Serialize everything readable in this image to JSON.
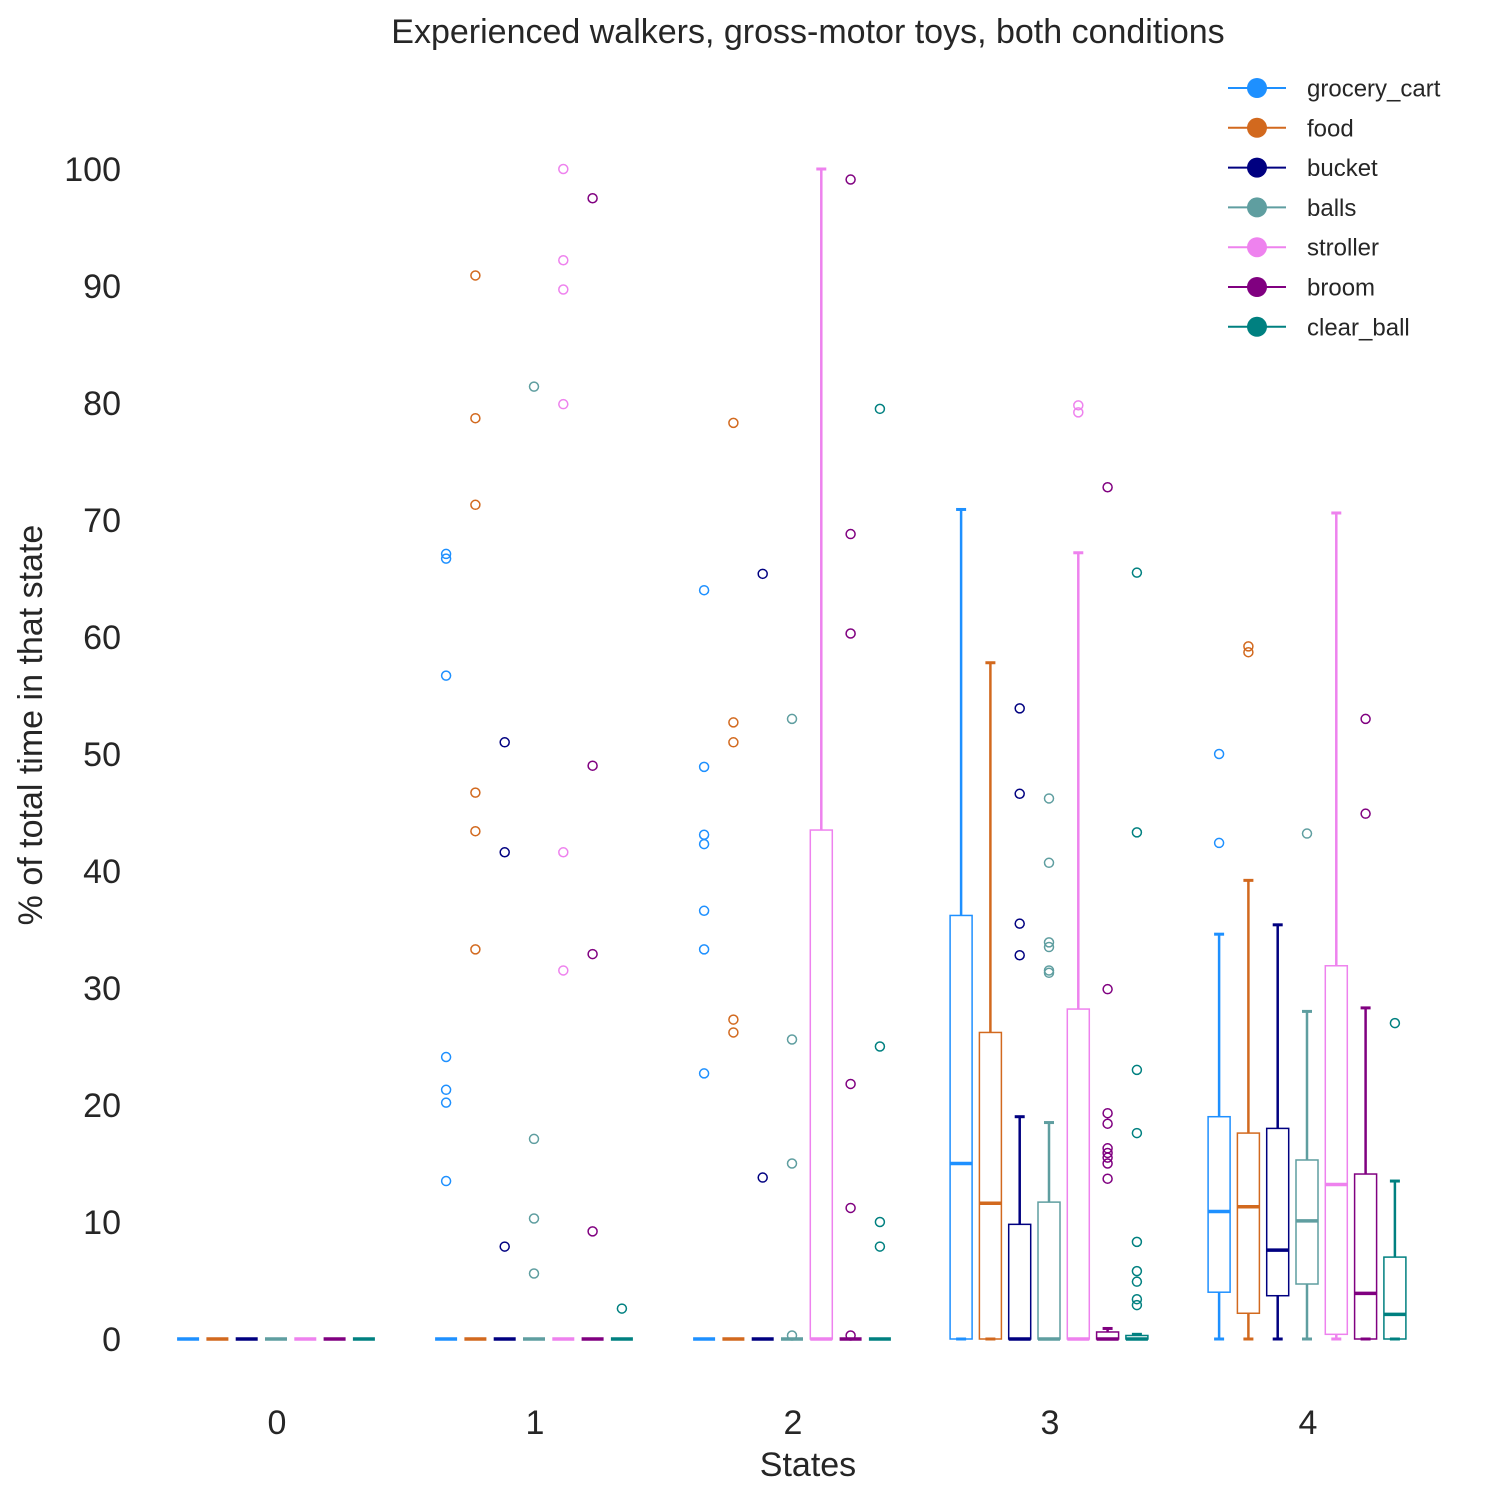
{
  "chart_data": {
    "type": "boxplot",
    "title": "Experienced walkers, gross-motor toys, both conditions",
    "xlabel": "States",
    "ylabel": "% of total time in that state",
    "categories": [
      "0",
      "1",
      "2",
      "3",
      "4"
    ],
    "ylim": [
      -4,
      103
    ],
    "yticks": [
      0,
      10,
      20,
      30,
      40,
      50,
      60,
      70,
      80,
      90,
      100
    ],
    "grid": false,
    "legend_position": "top-right",
    "series": [
      {
        "name": "grocery_cart",
        "color": "#1E90FF",
        "boxes": [
          {
            "whislo": 0,
            "q1": 0,
            "med": 0,
            "q3": 0,
            "whishi": 0,
            "fliers": []
          },
          {
            "whislo": 0,
            "q1": 0,
            "med": 0,
            "q3": 0,
            "whishi": 0,
            "fliers": [
              13.5,
              20.2,
              21.3,
              24.1,
              56.7,
              66.7,
              67.1
            ]
          },
          {
            "whislo": 0,
            "q1": 0,
            "med": 0,
            "q3": 0,
            "whishi": 0,
            "fliers": [
              22.7,
              33.3,
              36.6,
              42.3,
              43.1,
              48.9,
              64.0
            ]
          },
          {
            "whislo": 0,
            "q1": 0,
            "med": 15.0,
            "q3": 36.2,
            "whishi": 70.9,
            "fliers": []
          },
          {
            "whislo": 0,
            "q1": 4.0,
            "med": 10.9,
            "q3": 19.0,
            "whishi": 34.6,
            "fliers": [
              42.4,
              50.0
            ]
          }
        ]
      },
      {
        "name": "food",
        "color": "#D2691E",
        "boxes": [
          {
            "whislo": 0,
            "q1": 0,
            "med": 0,
            "q3": 0,
            "whishi": 0,
            "fliers": []
          },
          {
            "whislo": 0,
            "q1": 0,
            "med": 0,
            "q3": 0,
            "whishi": 0,
            "fliers": [
              33.3,
              43.4,
              46.7,
              71.3,
              78.7,
              90.9
            ]
          },
          {
            "whislo": 0,
            "q1": 0,
            "med": 0,
            "q3": 0,
            "whishi": 0,
            "fliers": [
              26.2,
              27.3,
              51.0,
              52.7,
              78.3
            ]
          },
          {
            "whislo": 0,
            "q1": 0,
            "med": 11.6,
            "q3": 26.2,
            "whishi": 57.8,
            "fliers": []
          },
          {
            "whislo": 0,
            "q1": 2.2,
            "med": 11.3,
            "q3": 17.6,
            "whishi": 39.2,
            "fliers": [
              58.7,
              59.2
            ]
          }
        ]
      },
      {
        "name": "bucket",
        "color": "#000080",
        "boxes": [
          {
            "whislo": 0,
            "q1": 0,
            "med": 0,
            "q3": 0,
            "whishi": 0,
            "fliers": []
          },
          {
            "whislo": 0,
            "q1": 0,
            "med": 0,
            "q3": 0,
            "whishi": 0,
            "fliers": [
              7.9,
              41.6,
              51.0
            ]
          },
          {
            "whislo": 0,
            "q1": 0,
            "med": 0,
            "q3": 0,
            "whishi": 0,
            "fliers": [
              13.8,
              65.4
            ]
          },
          {
            "whislo": 0,
            "q1": 0,
            "med": 0,
            "q3": 9.8,
            "whishi": 19.0,
            "fliers": [
              32.8,
              35.5,
              46.6,
              53.9
            ]
          },
          {
            "whislo": 0,
            "q1": 3.7,
            "med": 7.6,
            "q3": 18.0,
            "whishi": 35.4,
            "fliers": []
          }
        ]
      },
      {
        "name": "balls",
        "color": "#5F9EA0",
        "boxes": [
          {
            "whislo": 0,
            "q1": 0,
            "med": 0,
            "q3": 0,
            "whishi": 0,
            "fliers": []
          },
          {
            "whislo": 0,
            "q1": 0,
            "med": 0,
            "q3": 0,
            "whishi": 0,
            "fliers": [
              5.6,
              10.3,
              17.1,
              81.4
            ]
          },
          {
            "whislo": 0,
            "q1": 0,
            "med": 0,
            "q3": 0,
            "whishi": 0,
            "fliers": [
              0.3,
              15.0,
              25.6,
              53.0
            ]
          },
          {
            "whislo": 0,
            "q1": 0,
            "med": 0,
            "q3": 11.7,
            "whishi": 18.5,
            "fliers": [
              31.3,
              31.5,
              33.5,
              33.9,
              40.7,
              46.2
            ]
          },
          {
            "whislo": 0,
            "q1": 4.7,
            "med": 10.1,
            "q3": 15.3,
            "whishi": 28.0,
            "fliers": [
              43.2
            ]
          }
        ]
      },
      {
        "name": "stroller",
        "color": "#EE82EE",
        "boxes": [
          {
            "whislo": 0,
            "q1": 0,
            "med": 0,
            "q3": 0,
            "whishi": 0,
            "fliers": []
          },
          {
            "whislo": 0,
            "q1": 0,
            "med": 0,
            "q3": 0,
            "whishi": 0,
            "fliers": [
              31.5,
              41.6,
              79.9,
              89.7,
              92.2,
              100.0
            ]
          },
          {
            "whislo": 0,
            "q1": 0,
            "med": 0,
            "q3": 43.5,
            "whishi": 100.0,
            "fliers": []
          },
          {
            "whislo": 0,
            "q1": 0,
            "med": 0,
            "q3": 28.2,
            "whishi": 67.2,
            "fliers": [
              79.2,
              79.8
            ]
          },
          {
            "whislo": 0,
            "q1": 0.4,
            "med": 13.2,
            "q3": 31.9,
            "whishi": 70.6,
            "fliers": []
          }
        ]
      },
      {
        "name": "broom",
        "color": "#800080",
        "boxes": [
          {
            "whislo": 0,
            "q1": 0,
            "med": 0,
            "q3": 0,
            "whishi": 0,
            "fliers": []
          },
          {
            "whislo": 0,
            "q1": 0,
            "med": 0,
            "q3": 0,
            "whishi": 0,
            "fliers": [
              9.2,
              32.9,
              49.0,
              97.5
            ]
          },
          {
            "whislo": 0,
            "q1": 0,
            "med": 0,
            "q3": 0,
            "whishi": 0,
            "fliers": [
              0.3,
              11.2,
              21.8,
              60.3,
              68.8,
              99.1
            ]
          },
          {
            "whislo": 0,
            "q1": 0,
            "med": 0,
            "q3": 0.6,
            "whishi": 0.9,
            "fliers": [
              13.7,
              15.0,
              15.5,
              15.9,
              16.3,
              18.4,
              19.3,
              29.9,
              72.8
            ]
          },
          {
            "whislo": 0,
            "q1": 0,
            "med": 3.9,
            "q3": 14.1,
            "whishi": 28.3,
            "fliers": [
              44.9,
              53.0
            ]
          }
        ]
      },
      {
        "name": "clear_ball",
        "color": "#008080",
        "boxes": [
          {
            "whislo": 0,
            "q1": 0,
            "med": 0,
            "q3": 0,
            "whishi": 0,
            "fliers": []
          },
          {
            "whislo": 0,
            "q1": 0,
            "med": 0,
            "q3": 0,
            "whishi": 0,
            "fliers": [
              2.6
            ]
          },
          {
            "whislo": 0,
            "q1": 0,
            "med": 0,
            "q3": 0,
            "whishi": 0,
            "fliers": [
              7.9,
              10.0,
              25.0,
              79.5
            ]
          },
          {
            "whislo": 0,
            "q1": 0,
            "med": 0,
            "q3": 0.3,
            "whishi": 0.4,
            "fliers": [
              2.9,
              3.4,
              4.9,
              5.8,
              8.3,
              17.6,
              23.0,
              43.3,
              65.5
            ]
          },
          {
            "whislo": 0,
            "q1": 0,
            "med": 2.1,
            "q3": 7.0,
            "whishi": 13.5,
            "fliers": [
              27.0
            ]
          }
        ]
      }
    ]
  }
}
